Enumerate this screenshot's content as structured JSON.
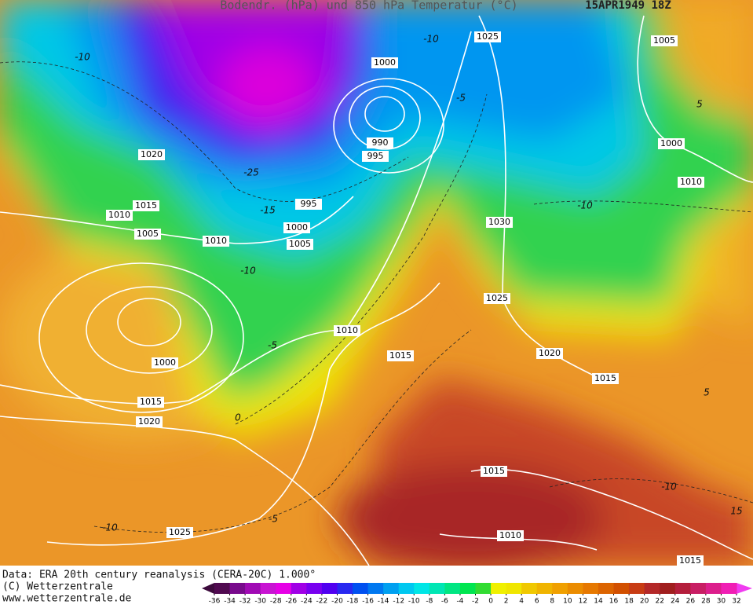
{
  "header": {
    "title": "Bodendr. (hPa) und 850 hPa Temperatur (°C)",
    "date": "15APR1949 18Z"
  },
  "isobar_labels": [
    1025,
    1005,
    1000,
    1000,
    990,
    995,
    1020,
    1010,
    1015,
    995,
    1010,
    1000,
    1030,
    1005,
    1010,
    1005,
    1025,
    1010,
    1020,
    1015,
    1000,
    1015,
    1015,
    1020,
    1015,
    1010,
    1025,
    1015
  ],
  "temperature_labels": [
    -10,
    -10,
    -5,
    -25,
    -15,
    -10,
    -5,
    -10,
    0,
    -5,
    -10,
    5,
    5,
    -10,
    15
  ],
  "footer": {
    "source": "Data: ERA 20th century reanalysis (CERA-20C) 1.000°",
    "copyright": "(C) Wetterzentrale",
    "url": "www.wetterzentrale.de"
  },
  "legend": {
    "ticks": [
      -36,
      -34,
      -32,
      -30,
      -28,
      -26,
      -24,
      -22,
      -20,
      -18,
      -16,
      -14,
      -12,
      -10,
      -8,
      -6,
      -4,
      -2,
      0,
      2,
      4,
      6,
      8,
      10,
      12,
      14,
      16,
      18,
      20,
      22,
      24,
      26,
      28,
      30,
      32
    ],
    "colors": [
      "#500a50",
      "#780a8c",
      "#a00ab4",
      "#c814d2",
      "#e600e6",
      "#a000e6",
      "#7800f0",
      "#5000f0",
      "#2828f0",
      "#0050f0",
      "#0078f0",
      "#00a0f0",
      "#00c8f0",
      "#00e6e6",
      "#00e6b4",
      "#00e682",
      "#00e650",
      "#32dc32",
      "#f0f000",
      "#f0e600",
      "#f0c800",
      "#f0b400",
      "#f0a000",
      "#eb8c00",
      "#e67800",
      "#dc6400",
      "#d25000",
      "#c83c14",
      "#b42828",
      "#a01e1e",
      "#b41e3c",
      "#c81e64",
      "#dc1e8c",
      "#f01eb4"
    ],
    "low_color": "#3c0a3c",
    "high_color": "#f03cf0"
  }
}
